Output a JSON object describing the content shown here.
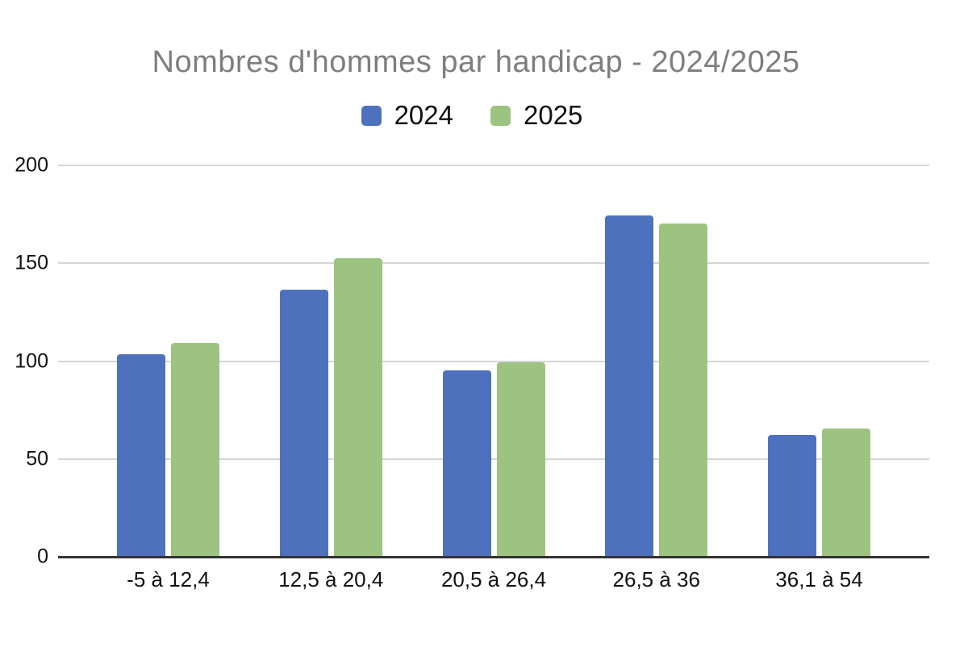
{
  "chart_data": {
    "type": "bar",
    "title": "Nombres d'hommes par handicap - 2024/2025",
    "xlabel": "",
    "ylabel": "",
    "categories": [
      "-5 à 12,4",
      "12,5 à 20,4",
      "20,5 à 26,4",
      "26,5 à 36",
      "36,1 à 54"
    ],
    "series": [
      {
        "name": "2024",
        "color": "#4E71BE",
        "values": [
          103,
          136,
          95,
          174,
          62
        ]
      },
      {
        "name": "2025",
        "color": "#9CC380",
        "values": [
          109,
          152,
          99,
          170,
          65
        ]
      }
    ],
    "ylim": [
      0,
      200
    ],
    "yticks": [
      0,
      50,
      100,
      150,
      200
    ],
    "grid": true,
    "legend_position": "top"
  },
  "colors": {
    "title_text": "#7E7E7E",
    "gridline": "#D6D6D6",
    "axis_line": "#333333",
    "tick_text": "#111111",
    "background": "#FFFFFF"
  }
}
